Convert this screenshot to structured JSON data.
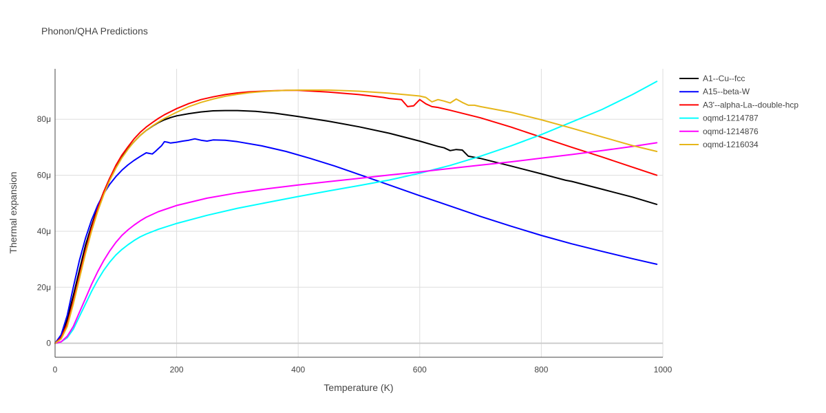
{
  "chart_data": {
    "type": "line",
    "title": "Phonon/QHA Predictions",
    "xlabel": "Temperature (K)",
    "ylabel": "Thermal expansion",
    "xlim": [
      0,
      1000
    ],
    "ylim": [
      -5e-06,
      9.8e-05
    ],
    "x_ticks": [
      0,
      200,
      400,
      600,
      800,
      1000
    ],
    "x_tick_labels": [
      "0",
      "200",
      "400",
      "600",
      "800",
      "1000"
    ],
    "y_ticks": [
      0,
      2e-05,
      4e-05,
      6e-05,
      8e-05
    ],
    "y_tick_labels": [
      "0",
      "20μ",
      "40μ",
      "60μ",
      "80μ"
    ],
    "grid": true,
    "legend_position": "right",
    "series": [
      {
        "name": "A1--Cu--fcc",
        "color": "#000000",
        "x": [
          0,
          10,
          20,
          30,
          40,
          50,
          60,
          70,
          80,
          90,
          100,
          110,
          120,
          130,
          140,
          150,
          160,
          170,
          180,
          190,
          200,
          220,
          240,
          260,
          280,
          300,
          330,
          360,
          400,
          450,
          500,
          550,
          600,
          630,
          640,
          650,
          660,
          670,
          680,
          700,
          750,
          800,
          840,
          850,
          900,
          950,
          990
        ],
        "y": [
          0,
          2.5e-06,
          8.5e-06,
          1.7e-05,
          2.6e-05,
          3.5e-05,
          4.2e-05,
          4.85e-05,
          5.4e-05,
          5.9e-05,
          6.3e-05,
          6.65e-05,
          6.95e-05,
          7.2e-05,
          7.42e-05,
          7.6e-05,
          7.75e-05,
          7.88e-05,
          7.98e-05,
          8.06e-05,
          8.12e-05,
          8.2e-05,
          8.26e-05,
          8.3e-05,
          8.31e-05,
          8.31e-05,
          8.28e-05,
          8.22e-05,
          8.1e-05,
          7.93e-05,
          7.73e-05,
          7.5e-05,
          7.22e-05,
          7.03e-05,
          6.98e-05,
          6.88e-05,
          6.92e-05,
          6.9e-05,
          6.68e-05,
          6.6e-05,
          6.33e-05,
          6.05e-05,
          5.82e-05,
          5.78e-05,
          5.5e-05,
          5.22e-05,
          4.96e-05
        ]
      },
      {
        "name": "A15--beta-W",
        "color": "#0000ff",
        "x": [
          0,
          10,
          20,
          30,
          40,
          50,
          60,
          70,
          80,
          90,
          100,
          110,
          120,
          130,
          140,
          150,
          155,
          160,
          165,
          170,
          175,
          180,
          185,
          190,
          200,
          210,
          220,
          230,
          240,
          250,
          260,
          280,
          300,
          340,
          380,
          420,
          460,
          500,
          550,
          600,
          650,
          700,
          750,
          800,
          850,
          900,
          950,
          990
        ],
        "y": [
          0,
          3e-06,
          1e-05,
          2e-05,
          2.95e-05,
          3.75e-05,
          4.4e-05,
          4.92e-05,
          5.34e-05,
          5.68e-05,
          5.95e-05,
          6.18e-05,
          6.37e-05,
          6.53e-05,
          6.67e-05,
          6.8e-05,
          6.78e-05,
          6.76e-05,
          6.85e-05,
          6.95e-05,
          7.05e-05,
          7.2e-05,
          7.18e-05,
          7.15e-05,
          7.18e-05,
          7.22e-05,
          7.25e-05,
          7.3e-05,
          7.25e-05,
          7.22e-05,
          7.26e-05,
          7.25e-05,
          7.2e-05,
          7.05e-05,
          6.85e-05,
          6.6e-05,
          6.33e-05,
          6.03e-05,
          5.65e-05,
          5.27e-05,
          4.9e-05,
          4.53e-05,
          4.18e-05,
          3.85e-05,
          3.55e-05,
          3.28e-05,
          3.02e-05,
          2.82e-05
        ]
      },
      {
        "name": "A3'--alpha-La--double-hcp",
        "color": "#ff0000",
        "x": [
          0,
          10,
          20,
          30,
          40,
          50,
          60,
          70,
          80,
          90,
          100,
          110,
          120,
          130,
          140,
          150,
          160,
          170,
          180,
          200,
          220,
          240,
          260,
          280,
          300,
          320,
          350,
          380,
          400,
          450,
          500,
          540,
          550,
          570,
          580,
          590,
          600,
          610,
          620,
          630,
          650,
          700,
          750,
          800,
          850,
          900,
          950,
          990
        ],
        "y": [
          0,
          2e-06,
          7e-06,
          1.5e-05,
          2.4e-05,
          3.3e-05,
          4.1e-05,
          4.8e-05,
          5.4e-05,
          5.9e-05,
          6.35e-05,
          6.72e-05,
          7.02e-05,
          7.3e-05,
          7.53e-05,
          7.72e-05,
          7.88e-05,
          8.03e-05,
          8.16e-05,
          8.38e-05,
          8.56e-05,
          8.7e-05,
          8.8e-05,
          8.88e-05,
          8.94e-05,
          8.98e-05,
          9.01e-05,
          9.03e-05,
          9.03e-05,
          8.97e-05,
          8.88e-05,
          8.78e-05,
          8.74e-05,
          8.7e-05,
          8.45e-05,
          8.48e-05,
          8.7e-05,
          8.55e-05,
          8.45e-05,
          8.42e-05,
          8.32e-05,
          8.05e-05,
          7.72e-05,
          7.36e-05,
          7e-05,
          6.65e-05,
          6.29e-05,
          6e-05
        ]
      },
      {
        "name": "oqmd-1214787",
        "color": "#00ffff",
        "x": [
          0,
          10,
          20,
          30,
          40,
          50,
          60,
          70,
          80,
          90,
          100,
          110,
          120,
          130,
          140,
          150,
          170,
          200,
          250,
          300,
          350,
          400,
          450,
          500,
          550,
          600,
          650,
          700,
          750,
          800,
          850,
          900,
          950,
          990
        ],
        "y": [
          0,
          5e-07,
          2e-06,
          5e-06,
          9.5e-06,
          1.4e-05,
          1.85e-05,
          2.25e-05,
          2.6e-05,
          2.9e-05,
          3.15e-05,
          3.35e-05,
          3.52e-05,
          3.67e-05,
          3.8e-05,
          3.9e-05,
          4.07e-05,
          4.28e-05,
          4.57e-05,
          4.82e-05,
          5.03e-05,
          5.24e-05,
          5.44e-05,
          5.63e-05,
          5.83e-05,
          6.07e-05,
          6.35e-05,
          6.68e-05,
          7.05e-05,
          7.45e-05,
          7.9e-05,
          8.35e-05,
          8.88e-05,
          9.35e-05
        ]
      },
      {
        "name": "oqmd-1214876",
        "color": "#ff00ff",
        "x": [
          0,
          10,
          20,
          30,
          40,
          50,
          60,
          70,
          80,
          90,
          100,
          110,
          120,
          130,
          140,
          150,
          170,
          200,
          250,
          300,
          350,
          400,
          450,
          500,
          550,
          600,
          650,
          700,
          750,
          800,
          850,
          900,
          950,
          990
        ],
        "y": [
          0,
          5e-07,
          2.5e-06,
          6e-06,
          1.1e-05,
          1.6e-05,
          2.1e-05,
          2.55e-05,
          2.95e-05,
          3.3e-05,
          3.6e-05,
          3.85e-05,
          4.05e-05,
          4.22e-05,
          4.37e-05,
          4.5e-05,
          4.7e-05,
          4.92e-05,
          5.18e-05,
          5.37e-05,
          5.52e-05,
          5.65e-05,
          5.77e-05,
          5.89e-05,
          6.01e-05,
          6.12e-05,
          6.24e-05,
          6.36e-05,
          6.48e-05,
          6.61e-05,
          6.74e-05,
          6.88e-05,
          7.03e-05,
          7.16e-05
        ]
      },
      {
        "name": "oqmd-1216034",
        "color": "#e6b619",
        "x": [
          0,
          10,
          20,
          30,
          40,
          50,
          60,
          70,
          80,
          90,
          100,
          110,
          120,
          130,
          140,
          150,
          160,
          170,
          180,
          200,
          220,
          240,
          260,
          280,
          300,
          320,
          350,
          380,
          400,
          450,
          500,
          550,
          600,
          610,
          620,
          630,
          640,
          650,
          660,
          670,
          680,
          690,
          700,
          750,
          800,
          850,
          900,
          950,
          990
        ],
        "y": [
          0,
          1.5e-06,
          6e-06,
          1.4e-05,
          2.3e-05,
          3.2e-05,
          4e-05,
          4.7e-05,
          5.3e-05,
          5.82e-05,
          6.25e-05,
          6.62e-05,
          6.93e-05,
          7.2e-05,
          7.42e-05,
          7.6e-05,
          7.76e-05,
          7.9e-05,
          8.03e-05,
          8.25e-05,
          8.45e-05,
          8.6e-05,
          8.72e-05,
          8.82e-05,
          8.89e-05,
          8.95e-05,
          9e-05,
          9.03e-05,
          9.04e-05,
          9.04e-05,
          9e-05,
          8.93e-05,
          8.83e-05,
          8.78e-05,
          8.62e-05,
          8.7e-05,
          8.65e-05,
          8.58e-05,
          8.72e-05,
          8.6e-05,
          8.5e-05,
          8.5e-05,
          8.45e-05,
          8.25e-05,
          7.98e-05,
          7.68e-05,
          7.37e-05,
          7.06e-05,
          6.85e-05
        ]
      }
    ]
  }
}
